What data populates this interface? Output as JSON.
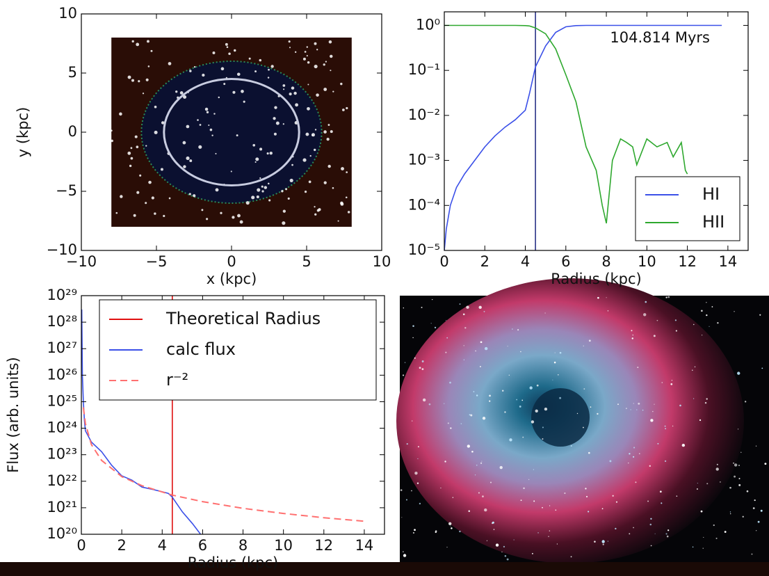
{
  "chart_data": [
    {
      "type": "particles",
      "xlabel": "x (kpc)",
      "ylabel": "y (kpc)",
      "xlim": [
        -10,
        10
      ],
      "ylim": [
        -10,
        10
      ],
      "xticks": [
        {
          "value": -10,
          "label": "−10"
        },
        {
          "value": -5,
          "label": "−5"
        },
        0,
        5,
        10
      ],
      "yticks": [
        {
          "value": -10,
          "label": "−10"
        },
        {
          "value": -5,
          "label": "−5"
        },
        0,
        5,
        10
      ],
      "particle_extent": [
        -8,
        8
      ],
      "ionized_radius": 6,
      "circle_radius": 4.5,
      "particle_color": "#2a0d06",
      "ionized_color": "#0b1030",
      "circle_color": "#c8cce0"
    },
    {
      "type": "line",
      "xlabel": "Radius (kpc)",
      "log_y": true,
      "annotation": "104.814 Myrs",
      "xlim": [
        0,
        15
      ],
      "ylim": [
        1e-05,
        2
      ],
      "xticks": [
        0,
        2,
        4,
        6,
        8,
        10,
        12,
        14
      ],
      "yticks": [
        {
          "value": 1e-05,
          "label": "10⁻⁵"
        },
        {
          "value": 0.0001,
          "label": "10⁻⁴"
        },
        {
          "value": 0.001,
          "label": "10⁻³"
        },
        {
          "value": 0.01,
          "label": "10⁻²"
        },
        {
          "value": 0.1,
          "label": "10⁻¹"
        },
        {
          "value": 1,
          "label": "10⁰"
        }
      ],
      "vline": 4.5,
      "vline_color": "#1a237e",
      "legend": "lower right",
      "x": [
        0,
        0.1,
        0.3,
        0.6,
        1,
        1.5,
        2,
        2.5,
        3,
        3.5,
        4,
        4.2,
        4.5,
        5,
        5.5,
        6,
        6.5,
        7,
        7.5,
        7.8,
        8,
        8.3,
        8.7,
        9,
        9.3,
        9.5,
        10,
        10.5,
        11,
        11.3,
        11.7,
        11.9,
        12,
        13.7
      ],
      "series": [
        {
          "name": "HI",
          "color": "#3b50e8",
          "values": [
            1e-05,
            3e-05,
            0.0001,
            0.00025,
            0.0005,
            0.001,
            0.002,
            0.0035,
            0.0055,
            0.008,
            0.013,
            0.03,
            0.12,
            0.35,
            0.7,
            0.93,
            0.99,
            1,
            1,
            1,
            1,
            1,
            1,
            1,
            1,
            1,
            1,
            1,
            1,
            1,
            1,
            1,
            1,
            1
          ]
        },
        {
          "name": "HII",
          "color": "#2ea82e",
          "values": [
            1,
            1,
            1,
            1,
            1,
            1,
            1,
            1,
            1,
            1,
            0.99,
            0.97,
            0.88,
            0.65,
            0.3,
            0.08,
            0.02,
            0.002,
            0.0006,
            0.0001,
            4e-05,
            0.001,
            0.003,
            0.0025,
            0.002,
            0.0008,
            0.003,
            0.002,
            0.0025,
            0.0012,
            0.0025,
            0.0006,
            0.0005,
            null
          ]
        }
      ]
    },
    {
      "type": "line",
      "xlabel": "Radius (kpc)",
      "ylabel": "Flux (arb. units)",
      "log_y": true,
      "xlim": [
        0,
        15
      ],
      "ylim": [
        1e+20,
        1e+29
      ],
      "xticks": [
        0,
        2,
        4,
        6,
        8,
        10,
        12,
        14
      ],
      "yticks": [
        {
          "value": 1e+20,
          "label": "10²⁰"
        },
        {
          "value": 1e+21,
          "label": "10²¹"
        },
        {
          "value": 1e+22,
          "label": "10²²"
        },
        {
          "value": 1e+23,
          "label": "10²³"
        },
        {
          "value": 1e+24,
          "label": "10²⁴"
        },
        {
          "value": 1e+25,
          "label": "10²⁵"
        },
        {
          "value": 1e+26,
          "label": "10²⁶"
        },
        {
          "value": 1e+27,
          "label": "10²⁷"
        },
        {
          "value": 1e+28,
          "label": "10²⁸"
        },
        {
          "value": 1e+29,
          "label": "10²⁹"
        }
      ],
      "legend": "upper right",
      "series": [
        {
          "name": "Theoretical Radius",
          "color": "#e01010",
          "x": [
            4.5,
            4.5
          ],
          "values": [
            1e+20,
            1e+29
          ]
        },
        {
          "name": "calc flux",
          "color": "#3b50e8",
          "x": [
            0.02,
            0.05,
            0.1,
            0.15,
            0.2,
            0.5,
            1,
            1.5,
            2,
            2.5,
            3,
            3.5,
            4,
            4.3,
            4.5,
            4.7,
            5,
            5.5,
            5.9
          ],
          "values": [
            3e+28,
            1e+26,
            1e+25,
            2e+24,
            8e+23,
            3e+23,
            1.3e+23,
            4e+22,
            1.6e+22,
            1.1e+22,
            6e+21,
            5e+21,
            4e+21,
            3.5e+21,
            2.5e+21,
            1.5e+21,
            7e+20,
            2.5e+20,
            1e+20
          ]
        },
        {
          "name": "r⁻²",
          "color": "#ff7070",
          "dashed": true,
          "x": [
            0.1,
            0.2,
            0.5,
            1,
            2,
            3,
            4.5,
            6,
            8,
            10,
            12,
            14
          ],
          "values": [
            6.1e+24,
            1.5e+24,
            2.4e+23,
            6.1e+22,
            1.5e+22,
            6.8e+21,
            3e+21,
            1.7e+21,
            9.5e+20,
            6.1e+20,
            4.2e+20,
            3.1e+20
          ]
        }
      ]
    }
  ]
}
